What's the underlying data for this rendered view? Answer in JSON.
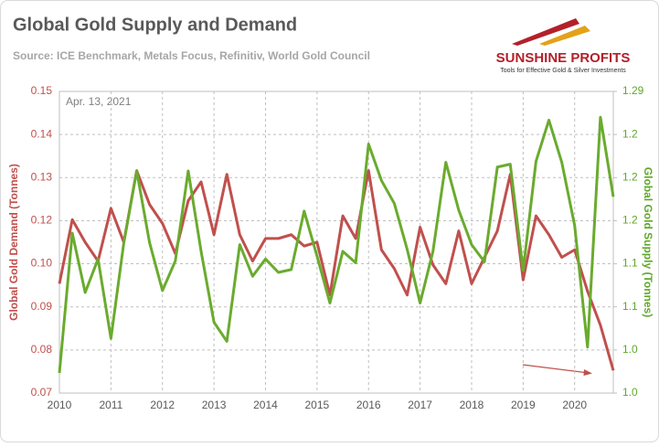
{
  "chart_data": {
    "type": "line",
    "title": "Global Gold Supply and Demand",
    "subtitle": "Source: ICE Benchmark, Metals Focus, Refinitiv, World Gold Council",
    "annotation": "Apr. 13, 2021",
    "logo": {
      "name": "SUNSHINE PROFITS",
      "tagline": "Tools for Effective Gold & Silver Investments"
    },
    "y_label": "Global Gold Demand (Tonnes)",
    "y2_label": "Global Gold Supply (Tonnes)",
    "x": [
      2010,
      2010.25,
      2010.5,
      2010.75,
      2011,
      2011.25,
      2011.5,
      2011.75,
      2012,
      2012.25,
      2012.5,
      2012.75,
      2013,
      2013.25,
      2013.5,
      2013.75,
      2014,
      2014.25,
      2014.5,
      2014.75,
      2015,
      2015.25,
      2015.5,
      2015.75,
      2016,
      2016.25,
      2016.5,
      2016.75,
      2017,
      2017.25,
      2017.5,
      2017.75,
      2018,
      2018.25,
      2018.5,
      2018.75,
      2019,
      2019.25,
      2019.5,
      2019.75,
      2020,
      2020.25,
      2020.5,
      2020.75
    ],
    "series": [
      {
        "name": "Global Gold Demand (Tonnes)",
        "color": "#c0504d",
        "axis": "y",
        "values": [
          0.099,
          0.116,
          0.11,
          0.105,
          0.119,
          0.11,
          0.129,
          0.12,
          0.115,
          0.107,
          0.121,
          0.126,
          0.112,
          0.128,
          0.112,
          0.105,
          0.111,
          0.111,
          0.112,
          0.109,
          0.11,
          0.096,
          0.117,
          0.111,
          0.129,
          0.108,
          0.103,
          0.096,
          0.114,
          0.104,
          0.099,
          0.113,
          0.099,
          0.106,
          0.113,
          0.128,
          0.1,
          0.117,
          0.112,
          0.106,
          0.108,
          0.097,
          0.088,
          0.076
        ]
      },
      {
        "name": "Global Gold Supply (Tonnes)",
        "color": "#6aab2e",
        "axis": "y2",
        "values": [
          0.996,
          1.142,
          1.08,
          1.115,
          1.032,
          1.132,
          1.207,
          1.132,
          1.082,
          1.113,
          1.207,
          1.123,
          1.049,
          1.029,
          1.13,
          1.097,
          1.115,
          1.101,
          1.104,
          1.165,
          1.118,
          1.069,
          1.123,
          1.111,
          1.235,
          1.197,
          1.173,
          1.125,
          1.069,
          1.123,
          1.216,
          1.166,
          1.13,
          1.112,
          1.211,
          1.214,
          1.103,
          1.217,
          1.26,
          1.216,
          1.15,
          1.023,
          1.263,
          1.18
        ]
      }
    ],
    "xlim": [
      2010,
      2020.75
    ],
    "xticks": [
      2010,
      2011,
      2012,
      2013,
      2014,
      2015,
      2016,
      2017,
      2018,
      2019,
      2020
    ],
    "ylim": [
      0.07,
      0.15
    ],
    "yticks": [
      0.07,
      {
        "value": 0.08143,
        "label": "0.08"
      },
      {
        "value": 0.09286,
        "label": "0.09"
      },
      {
        "value": 0.10429,
        "label": "0.10"
      },
      {
        "value": 0.11571,
        "label": "0.12"
      },
      {
        "value": 0.12714,
        "label": "0.13"
      },
      {
        "value": 0.13857,
        "label": "0.14"
      },
      0.15
    ],
    "y2lim": [
      0.975,
      1.29
    ],
    "y2ticks": [
      {
        "value": 0.975,
        "label": "1.0"
      },
      {
        "value": 1.02,
        "label": "1.0"
      },
      {
        "value": 1.065,
        "label": "1.1"
      },
      {
        "value": 1.11,
        "label": "1.1"
      },
      {
        "value": 1.155,
        "label": "1.2"
      },
      1.2,
      {
        "value": 1.245,
        "label": "1.2"
      },
      1.29
    ],
    "y_color": "#c0504d",
    "y2_color": "#5fa82a",
    "grid": true
  }
}
